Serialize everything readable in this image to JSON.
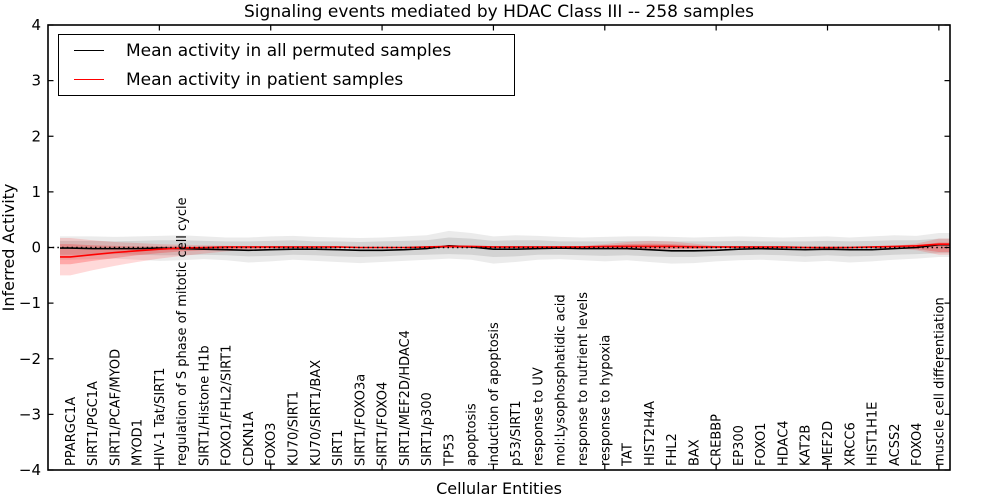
{
  "title": "Signaling events mediated by HDAC Class III -- 258 samples",
  "legend": {
    "items": [
      {
        "label": "Mean activity in all permuted samples",
        "color": "#000000"
      },
      {
        "label": "Mean activity in patient samples",
        "color": "#ff0000"
      }
    ]
  },
  "axes": {
    "xlabel": "Cellular Entities",
    "ylabel": "Inferred Activity",
    "ylim": [
      -4,
      4
    ],
    "yticks": [
      4,
      3,
      2,
      1,
      0,
      -1,
      -2,
      -3,
      -4
    ],
    "ytick_labels": [
      "4",
      "3",
      "2",
      "1",
      "0",
      "−1",
      "−2",
      "−3",
      "−4"
    ],
    "xtick_positions": [
      5,
      10,
      15,
      20,
      25,
      30,
      35,
      40
    ]
  },
  "chart_data": {
    "type": "line",
    "title": "Signaling events mediated by HDAC Class III -- 258 samples",
    "xlabel": "Cellular Entities",
    "ylabel": "Inferred Activity",
    "ylim": [
      -4,
      4
    ],
    "grid": false,
    "legend_position": "upper-left",
    "categories": [
      "PPARGC1A",
      "SIRT1/PGC1A",
      "SIRT1/PCAF/MYOD",
      "MYOD1",
      "HIV-1 Tat/SIRT1",
      "regulation of S phase of mitotic cell cycle",
      "SIRT1/Histone H1b",
      "FOXO1/FHL2/SIRT1",
      "CDKN1A",
      "FOXO3",
      "KU70/SIRT1",
      "KU70/SIRT1/BAX",
      "SIRT1",
      "SIRT1/FOXO3a",
      "SIRT1/FOXO4",
      "SIRT1/MEF2D/HDAC4",
      "SIRT1/p300",
      "TP53",
      "apoptosis",
      "induction of apoptosis",
      "p53/SIRT1",
      "response to UV",
      "mol:Lysophosphatidic acid",
      "response to nutrient levels",
      "response to hypoxia",
      "TAT",
      "HIST2H4A",
      "FHL2",
      "BAX",
      "CREBBP",
      "EP300",
      "FOXO1",
      "HDAC4",
      "KAT2B",
      "MEF2D",
      "XRCC6",
      "HIST1H1E",
      "ACSS2",
      "FOXO4",
      "muscle cell differentiation"
    ],
    "series": [
      {
        "name": "Mean activity in all permuted samples",
        "color": "#000000",
        "style": "solid",
        "values": [
          -0.01,
          -0.02,
          -0.02,
          -0.02,
          -0.01,
          -0.02,
          -0.03,
          -0.04,
          -0.05,
          -0.04,
          -0.03,
          -0.03,
          -0.04,
          -0.05,
          -0.05,
          -0.04,
          -0.02,
          0.03,
          0.01,
          -0.03,
          -0.03,
          -0.02,
          -0.01,
          -0.02,
          -0.02,
          -0.02,
          -0.04,
          -0.06,
          -0.06,
          -0.05,
          -0.03,
          -0.02,
          -0.03,
          -0.04,
          -0.03,
          -0.04,
          -0.04,
          -0.02,
          0.0,
          0.05
        ]
      },
      {
        "name": "Mean activity in patient samples",
        "color": "#ff0000",
        "style": "solid",
        "values": [
          -0.17,
          -0.13,
          -0.09,
          -0.06,
          -0.03,
          -0.01,
          0.0,
          0.01,
          0.01,
          0.01,
          0.01,
          0.01,
          0.01,
          0.0,
          0.0,
          0.0,
          0.01,
          0.02,
          0.02,
          0.01,
          0.01,
          0.01,
          0.01,
          0.01,
          0.02,
          0.02,
          0.02,
          0.02,
          0.01,
          0.01,
          0.01,
          0.01,
          0.01,
          0.0,
          0.0,
          0.0,
          0.01,
          0.02,
          0.03,
          0.06
        ]
      },
      {
        "name": "zero-baseline",
        "color": "#000000",
        "style": "dotted",
        "y": 0
      }
    ],
    "bands": [
      {
        "name": "permuted-outer",
        "color": "#000000",
        "opacity": 0.08,
        "hi": [
          0.2,
          0.2,
          0.19,
          0.2,
          0.21,
          0.22,
          0.2,
          0.18,
          0.18,
          0.2,
          0.21,
          0.19,
          0.18,
          0.17,
          0.18,
          0.2,
          0.22,
          0.3,
          0.26,
          0.2,
          0.22,
          0.21,
          0.19,
          0.18,
          0.19,
          0.2,
          0.2,
          0.19,
          0.18,
          0.19,
          0.2,
          0.19,
          0.18,
          0.19,
          0.2,
          0.18,
          0.2,
          0.22,
          0.21,
          0.26
        ],
        "lo": [
          -0.22,
          -0.21,
          -0.2,
          -0.22,
          -0.24,
          -0.23,
          -0.21,
          -0.23,
          -0.27,
          -0.25,
          -0.22,
          -0.24,
          -0.26,
          -0.28,
          -0.26,
          -0.24,
          -0.22,
          -0.2,
          -0.22,
          -0.29,
          -0.26,
          -0.22,
          -0.21,
          -0.23,
          -0.25,
          -0.23,
          -0.26,
          -0.29,
          -0.28,
          -0.25,
          -0.23,
          -0.22,
          -0.24,
          -0.26,
          -0.24,
          -0.27,
          -0.25,
          -0.22,
          -0.2,
          -0.17
        ]
      },
      {
        "name": "permuted-inner",
        "color": "#000000",
        "opacity": 0.1,
        "hi": [
          0.12,
          0.12,
          0.11,
          0.12,
          0.13,
          0.13,
          0.12,
          0.11,
          0.11,
          0.12,
          0.13,
          0.11,
          0.11,
          0.1,
          0.11,
          0.12,
          0.13,
          0.18,
          0.16,
          0.12,
          0.13,
          0.13,
          0.11,
          0.11,
          0.11,
          0.12,
          0.12,
          0.11,
          0.11,
          0.11,
          0.12,
          0.11,
          0.11,
          0.11,
          0.12,
          0.11,
          0.12,
          0.13,
          0.13,
          0.16
        ],
        "lo": [
          -0.13,
          -0.13,
          -0.12,
          -0.13,
          -0.14,
          -0.14,
          -0.13,
          -0.14,
          -0.16,
          -0.15,
          -0.13,
          -0.14,
          -0.16,
          -0.17,
          -0.16,
          -0.14,
          -0.13,
          -0.12,
          -0.13,
          -0.17,
          -0.16,
          -0.13,
          -0.13,
          -0.14,
          -0.15,
          -0.14,
          -0.16,
          -0.17,
          -0.17,
          -0.15,
          -0.14,
          -0.13,
          -0.14,
          -0.16,
          -0.14,
          -0.16,
          -0.15,
          -0.13,
          -0.12,
          -0.1
        ]
      },
      {
        "name": "patient-outer",
        "color": "#ff0000",
        "opacity": 0.15,
        "hi": [
          0.17,
          0.13,
          0.1,
          0.08,
          0.06,
          0.05,
          0.04,
          0.03,
          0.02,
          0.02,
          0.01,
          0.01,
          0.01,
          0.01,
          0.01,
          0.01,
          0.02,
          0.04,
          0.03,
          0.02,
          0.02,
          0.02,
          0.02,
          0.03,
          0.06,
          0.1,
          0.12,
          0.11,
          0.07,
          0.03,
          0.02,
          0.02,
          0.02,
          0.02,
          0.02,
          0.02,
          0.02,
          0.03,
          0.07,
          0.16
        ],
        "lo": [
          -0.5,
          -0.41,
          -0.33,
          -0.26,
          -0.2,
          -0.15,
          -0.11,
          -0.07,
          -0.04,
          -0.02,
          -0.01,
          -0.01,
          -0.01,
          -0.01,
          -0.01,
          -0.01,
          -0.01,
          -0.01,
          -0.01,
          -0.01,
          -0.01,
          -0.01,
          -0.01,
          -0.01,
          -0.02,
          -0.04,
          -0.05,
          -0.04,
          -0.03,
          -0.02,
          -0.01,
          -0.01,
          -0.01,
          -0.01,
          -0.01,
          -0.01,
          -0.01,
          -0.02,
          -0.05,
          -0.13
        ]
      },
      {
        "name": "patient-inner",
        "color": "#ff0000",
        "opacity": 0.22,
        "hi": [
          0.06,
          0.04,
          0.03,
          0.02,
          0.02,
          0.02,
          0.01,
          0.01,
          0.01,
          0.01,
          0.01,
          0.01,
          0.01,
          0.01,
          0.01,
          0.01,
          0.01,
          0.02,
          0.02,
          0.01,
          0.01,
          0.01,
          0.01,
          0.02,
          0.03,
          0.06,
          0.07,
          0.06,
          0.04,
          0.02,
          0.01,
          0.01,
          0.01,
          0.01,
          0.01,
          0.01,
          0.01,
          0.02,
          0.04,
          0.09
        ],
        "lo": [
          -0.3,
          -0.24,
          -0.19,
          -0.14,
          -0.1,
          -0.07,
          -0.05,
          -0.03,
          -0.02,
          -0.01,
          -0.01,
          -0.01,
          -0.01,
          -0.01,
          -0.01,
          -0.01,
          -0.01,
          -0.01,
          -0.01,
          -0.01,
          -0.01,
          -0.01,
          -0.01,
          -0.01,
          -0.01,
          -0.02,
          -0.03,
          -0.02,
          -0.02,
          -0.01,
          -0.01,
          -0.01,
          -0.01,
          -0.01,
          -0.01,
          -0.01,
          -0.01,
          -0.01,
          -0.03,
          -0.08
        ]
      }
    ]
  }
}
